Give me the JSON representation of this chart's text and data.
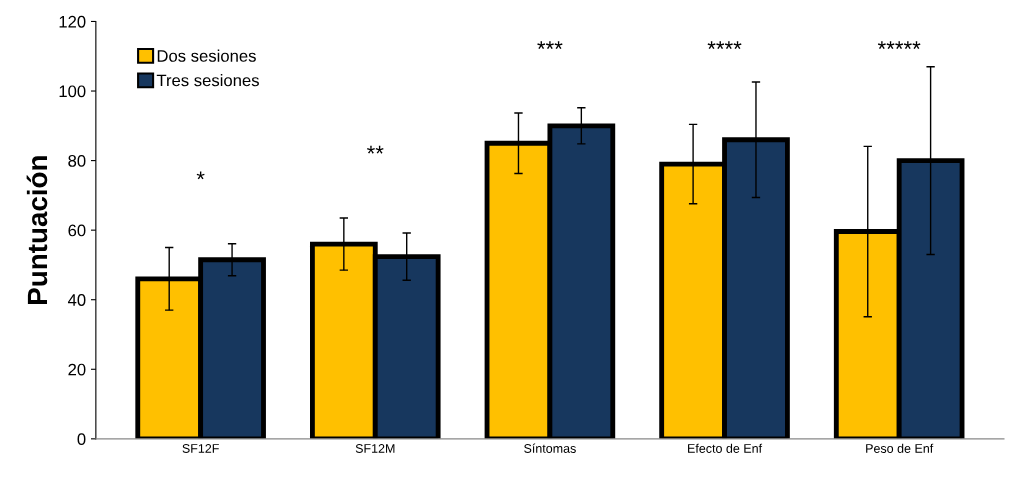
{
  "chart_data": {
    "type": "bar",
    "ylabel": "Puntuación",
    "categories": [
      "SF12F",
      "SF12M",
      "Síntomas",
      "Efecto de Enf",
      "Peso de Enf"
    ],
    "series": [
      {
        "name": "Dos sesiones",
        "color": "#ffc000",
        "values": [
          46,
          56,
          85,
          79,
          59.6
        ],
        "errors": [
          9,
          7.5,
          8.7,
          11.4,
          24.5
        ]
      },
      {
        "name": "Tres sesiones",
        "color": "#17375e",
        "values": [
          51.5,
          52.4,
          90,
          86,
          80
        ],
        "errors": [
          4.6,
          6.8,
          5.2,
          16.6,
          27
        ]
      }
    ],
    "annotations": [
      "*",
      "**",
      "***",
      "****",
      "*****"
    ],
    "ylim": [
      0,
      120
    ],
    "yticks": [
      0,
      20,
      40,
      60,
      80,
      100,
      120
    ],
    "grid": false,
    "legend": "top left"
  }
}
